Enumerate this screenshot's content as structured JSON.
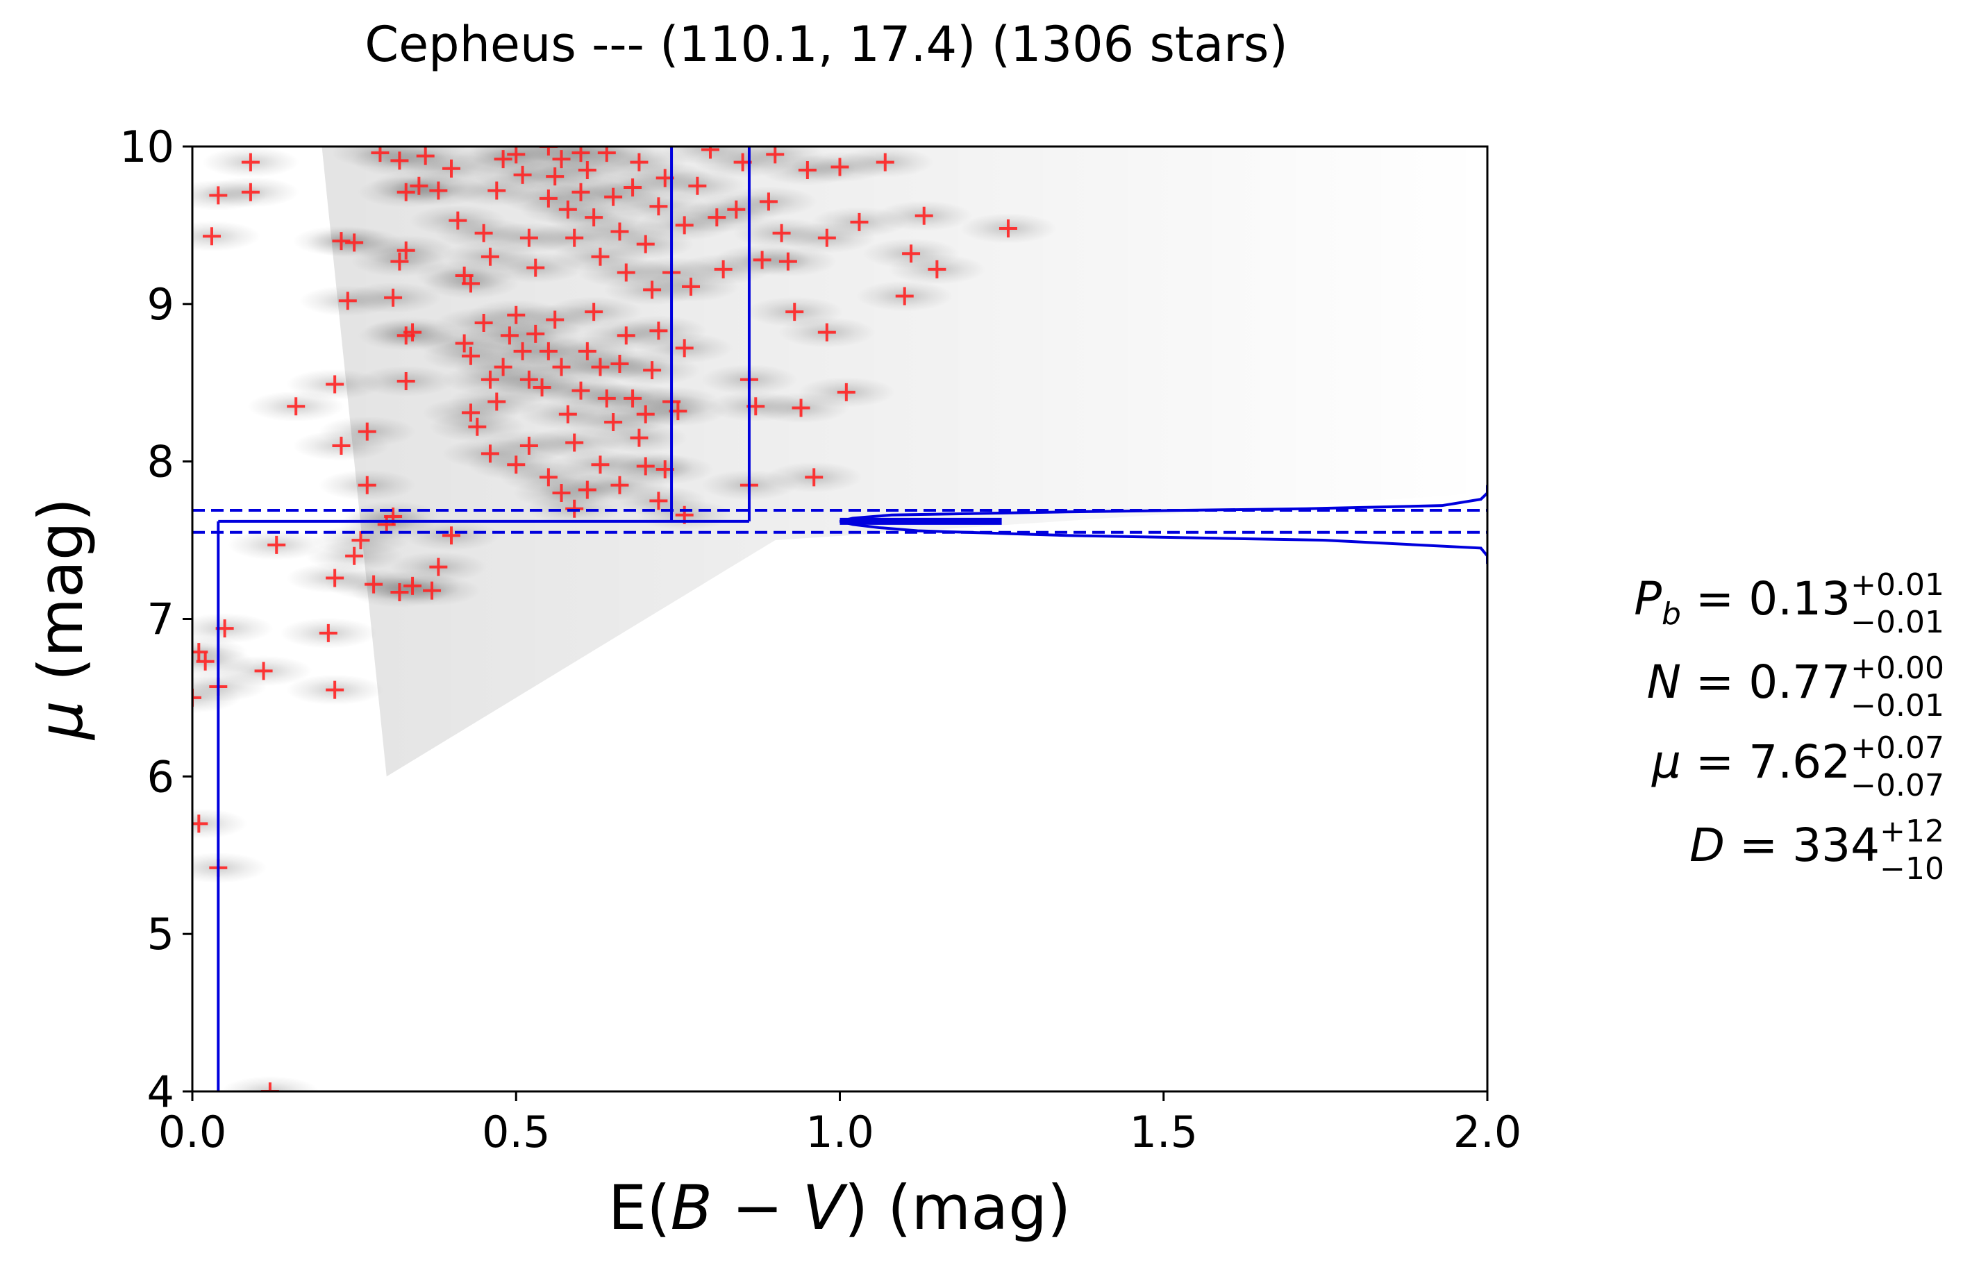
{
  "chart_data": {
    "type": "scatter",
    "title": "Cepheus --- (110.1, 17.4) (1306 stars)",
    "xlabel": "E(B − V) (mag)",
    "xlabel_parts": {
      "prefix": "E(",
      "var1": "B",
      "op": " − ",
      "var2": "V",
      "suffix": ") (mag)"
    },
    "ylabel": "μ (mag)",
    "ylabel_parts": {
      "var": "μ",
      "suffix": " (mag)"
    },
    "xlim": [
      0.0,
      2.0
    ],
    "ylim": [
      4,
      10
    ],
    "xticks": [
      "0.0",
      "0.5",
      "1.0",
      "1.5",
      "2.0"
    ],
    "yticks": [
      "4",
      "5",
      "6",
      "7",
      "8",
      "9",
      "10"
    ],
    "grid": false,
    "colors": {
      "points": "#ff2222",
      "model": "#0000dd",
      "density": "#888888"
    },
    "model_curve": {
      "x": [
        0.0,
        0.0,
        0.04,
        0.04,
        0.74,
        0.74,
        0.86,
        0.86
      ],
      "y": [
        4.0,
        4.0,
        4.0,
        7.62,
        7.62,
        10.0,
        10.0,
        7.62
      ],
      "segments": [
        {
          "x": [
            0.04,
            0.04
          ],
          "y": [
            4.0,
            7.62
          ]
        },
        {
          "x": [
            0.04,
            0.86
          ],
          "y": [
            7.62,
            7.62
          ]
        },
        {
          "x": [
            0.74,
            0.74
          ],
          "y": [
            7.62,
            10.0
          ]
        },
        {
          "x": [
            0.86,
            0.86
          ],
          "y": [
            7.62,
            10.0
          ]
        }
      ]
    },
    "mu_band": {
      "lower": 7.55,
      "upper": 7.69
    },
    "posterior_histogram": {
      "center": 7.62,
      "x_start": 1.0,
      "y": [
        7.35,
        7.4,
        7.45,
        7.5,
        7.53,
        7.56,
        7.58,
        7.6,
        7.62,
        7.64,
        7.66,
        7.68,
        7.7,
        7.72,
        7.76,
        7.8,
        7.85
      ],
      "x": [
        2.0,
        2.0,
        1.99,
        1.75,
        1.35,
        1.12,
        1.06,
        1.02,
        1.0,
        1.02,
        1.08,
        1.35,
        1.72,
        1.93,
        1.99,
        2.0,
        2.0
      ]
    },
    "points": [
      [
        0.03,
        9.43
      ],
      [
        0.04,
        9.69
      ],
      [
        0.09,
        9.9
      ],
      [
        0.09,
        9.71
      ],
      [
        0.16,
        8.35
      ],
      [
        0.22,
        8.49
      ],
      [
        0.23,
        8.1
      ],
      [
        0.23,
        9.4
      ],
      [
        0.25,
        9.39
      ],
      [
        0.24,
        9.02
      ],
      [
        0.27,
        8.19
      ],
      [
        0.27,
        7.85
      ],
      [
        0.26,
        7.5
      ],
      [
        0.25,
        7.4
      ],
      [
        0.28,
        7.22
      ],
      [
        0.22,
        7.26
      ],
      [
        0.21,
        6.91
      ],
      [
        0.22,
        6.55
      ],
      [
        0.13,
        7.47
      ],
      [
        0.11,
        6.67
      ],
      [
        0.05,
        6.94
      ],
      [
        0.04,
        6.57
      ],
      [
        0.01,
        6.79
      ],
      [
        0.02,
        6.73
      ],
      [
        0.0,
        6.5
      ],
      [
        0.01,
        5.7
      ],
      [
        0.04,
        5.42
      ],
      [
        0.12,
        4.0
      ],
      [
        0.29,
        9.96
      ],
      [
        0.31,
        9.04
      ],
      [
        0.32,
        9.27
      ],
      [
        0.33,
        9.34
      ],
      [
        0.33,
        8.8
      ],
      [
        0.34,
        8.82
      ],
      [
        0.33,
        8.51
      ],
      [
        0.31,
        7.65
      ],
      [
        0.3,
        7.6
      ],
      [
        0.32,
        7.17
      ],
      [
        0.34,
        7.21
      ],
      [
        0.38,
        7.33
      ],
      [
        0.37,
        7.18
      ],
      [
        0.4,
        7.53
      ],
      [
        0.32,
        9.91
      ],
      [
        0.33,
        9.71
      ],
      [
        0.35,
        9.75
      ],
      [
        0.36,
        9.94
      ],
      [
        0.38,
        9.72
      ],
      [
        0.4,
        9.86
      ],
      [
        0.41,
        9.53
      ],
      [
        0.42,
        9.18
      ],
      [
        0.43,
        9.13
      ],
      [
        0.45,
        9.45
      ],
      [
        0.46,
        9.3
      ],
      [
        0.47,
        9.72
      ],
      [
        0.48,
        9.92
      ],
      [
        0.5,
        9.95
      ],
      [
        0.51,
        9.82
      ],
      [
        0.52,
        9.42
      ],
      [
        0.53,
        9.23
      ],
      [
        0.55,
        9.67
      ],
      [
        0.56,
        9.81
      ],
      [
        0.57,
        9.92
      ],
      [
        0.58,
        9.6
      ],
      [
        0.59,
        9.42
      ],
      [
        0.6,
        9.71
      ],
      [
        0.61,
        9.85
      ],
      [
        0.62,
        9.55
      ],
      [
        0.63,
        9.3
      ],
      [
        0.64,
        9.96
      ],
      [
        0.65,
        9.68
      ],
      [
        0.66,
        9.46
      ],
      [
        0.67,
        9.2
      ],
      [
        0.68,
        9.74
      ],
      [
        0.69,
        9.9
      ],
      [
        0.7,
        9.38
      ],
      [
        0.71,
        9.09
      ],
      [
        0.72,
        9.62
      ],
      [
        0.73,
        9.8
      ],
      [
        0.42,
        8.75
      ],
      [
        0.43,
        8.67
      ],
      [
        0.45,
        8.88
      ],
      [
        0.46,
        8.52
      ],
      [
        0.47,
        8.38
      ],
      [
        0.48,
        8.6
      ],
      [
        0.49,
        8.8
      ],
      [
        0.5,
        8.93
      ],
      [
        0.51,
        8.7
      ],
      [
        0.52,
        8.52
      ],
      [
        0.53,
        8.81
      ],
      [
        0.54,
        8.47
      ],
      [
        0.55,
        8.7
      ],
      [
        0.56,
        8.9
      ],
      [
        0.57,
        8.6
      ],
      [
        0.58,
        8.3
      ],
      [
        0.59,
        8.12
      ],
      [
        0.6,
        8.45
      ],
      [
        0.61,
        8.7
      ],
      [
        0.62,
        8.95
      ],
      [
        0.63,
        8.6
      ],
      [
        0.64,
        8.4
      ],
      [
        0.65,
        8.25
      ],
      [
        0.66,
        8.62
      ],
      [
        0.67,
        8.8
      ],
      [
        0.68,
        8.4
      ],
      [
        0.69,
        8.15
      ],
      [
        0.7,
        8.3
      ],
      [
        0.71,
        8.58
      ],
      [
        0.72,
        8.83
      ],
      [
        0.43,
        8.31
      ],
      [
        0.44,
        8.22
      ],
      [
        0.46,
        8.05
      ],
      [
        0.5,
        7.98
      ],
      [
        0.52,
        8.1
      ],
      [
        0.55,
        7.9
      ],
      [
        0.57,
        7.8
      ],
      [
        0.59,
        7.7
      ],
      [
        0.61,
        7.82
      ],
      [
        0.63,
        7.98
      ],
      [
        0.66,
        7.85
      ],
      [
        0.7,
        7.97
      ],
      [
        0.72,
        7.75
      ],
      [
        0.73,
        7.95
      ],
      [
        0.76,
        7.66
      ],
      [
        0.75,
        8.32
      ],
      [
        0.76,
        8.72
      ],
      [
        0.77,
        9.11
      ],
      [
        0.76,
        9.5
      ],
      [
        0.78,
        9.75
      ],
      [
        0.8,
        9.98
      ],
      [
        0.81,
        9.55
      ],
      [
        0.82,
        9.22
      ],
      [
        0.84,
        9.6
      ],
      [
        0.85,
        9.9
      ],
      [
        0.86,
        8.52
      ],
      [
        0.86,
        7.85
      ],
      [
        0.87,
        8.35
      ],
      [
        0.88,
        9.28
      ],
      [
        0.89,
        9.65
      ],
      [
        0.9,
        9.95
      ],
      [
        0.91,
        9.45
      ],
      [
        0.92,
        9.27
      ],
      [
        0.93,
        8.95
      ],
      [
        0.94,
        8.34
      ],
      [
        0.96,
        7.9
      ],
      [
        0.95,
        9.85
      ],
      [
        0.98,
        9.42
      ],
      [
        0.98,
        8.82
      ],
      [
        1.0,
        9.87
      ],
      [
        1.01,
        8.44
      ],
      [
        1.03,
        9.52
      ],
      [
        1.07,
        9.9
      ],
      [
        1.1,
        9.05
      ],
      [
        1.11,
        9.32
      ],
      [
        1.13,
        9.56
      ],
      [
        1.15,
        9.22
      ],
      [
        1.26,
        9.48
      ],
      [
        0.74,
        8.38
      ],
      [
        0.74,
        9.2
      ],
      [
        0.6,
        9.96
      ],
      [
        0.55,
        10.0
      ]
    ]
  },
  "annotations": [
    {
      "var": "P",
      "sub": "b",
      "value": "0.13",
      "sup": "+0.01",
      "lower": "−0.01"
    },
    {
      "var": "N",
      "sub": "",
      "value": "0.77",
      "sup": "+0.00",
      "lower": "−0.01"
    },
    {
      "var": "μ",
      "sub": "",
      "value": "7.62",
      "sup": "+0.07",
      "lower": "−0.07"
    },
    {
      "var": "D",
      "sub": "",
      "value": "334",
      "sup": "+12",
      "lower": "−10"
    }
  ]
}
